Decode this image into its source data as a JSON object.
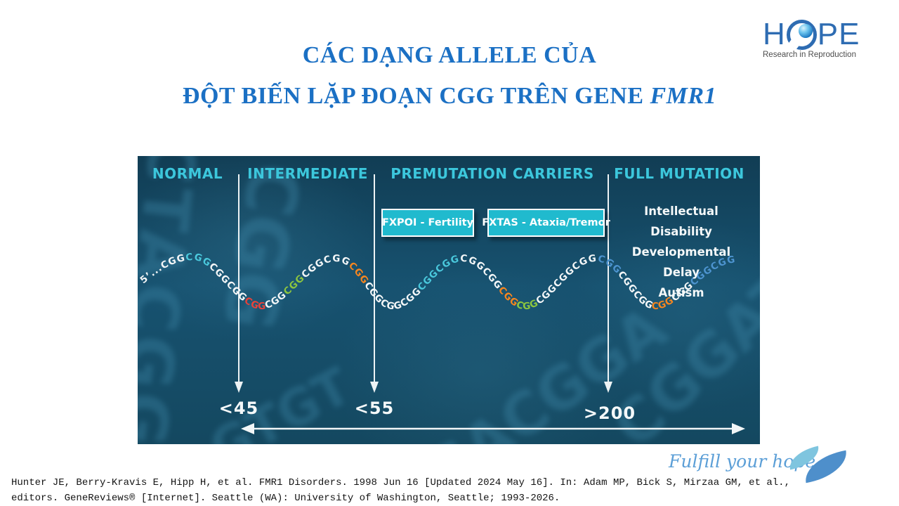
{
  "logo": {
    "part1": "H",
    "part2": "PE",
    "eye_icon": "hope-eye-icon",
    "tagline": "Research in Reproduction"
  },
  "header": {
    "title_line1": "CÁC DẠNG ALLELE CỦA",
    "title_line2_prefix": "ĐỘT BIẾN LẶP ĐOẠN CGG TRÊN GENE ",
    "title_line2_gene": "FMR1",
    "title_color": "#1B70C4"
  },
  "diagram": {
    "categories": [
      "NORMAL",
      "INTERMEDIATE",
      "PREMUTATION CARRIERS",
      "FULL MUTATION"
    ],
    "boundaries": [
      "<45",
      "<55",
      ">200"
    ],
    "boxes": [
      "FXPOI - Fertility",
      "FXTAS - Ataxia/Tremor"
    ],
    "full_mutation_effects": [
      "Intellectual Disability",
      "Developmental Delay",
      "Autism"
    ],
    "sequence_ends": {
      "five_prime": "5’...",
      "three_prime": "..3’"
    },
    "sequence": [
      {
        "t": "5’...",
        "c": "white"
      },
      {
        "t": "CGG",
        "c": "white"
      },
      {
        "t": "CGG",
        "c": "cyan"
      },
      {
        "t": "CGG",
        "c": "white"
      },
      {
        "t": "CGG",
        "c": "white"
      },
      {
        "t": "CGG",
        "c": "red"
      },
      {
        "t": "CGG",
        "c": "white"
      },
      {
        "t": "CGG",
        "c": "green"
      },
      {
        "t": "CGG",
        "c": "white"
      },
      {
        "t": "CGG",
        "c": "white"
      },
      {
        "t": "CGG",
        "c": "orange"
      },
      {
        "t": "CGG",
        "c": "white"
      },
      {
        "t": "CGG",
        "c": "white"
      },
      {
        "t": "CGG",
        "c": "white"
      },
      {
        "t": "CGG",
        "c": "cyan"
      },
      {
        "t": "CGG",
        "c": "cyan"
      },
      {
        "t": "CGG",
        "c": "white"
      },
      {
        "t": "CGG",
        "c": "white"
      },
      {
        "t": "CGG",
        "c": "orange"
      },
      {
        "t": "CGG",
        "c": "green"
      },
      {
        "t": "CGG",
        "c": "white"
      },
      {
        "t": "CGG",
        "c": "white"
      },
      {
        "t": "CGG",
        "c": "white"
      },
      {
        "t": "CGG",
        "c": "blue"
      },
      {
        "t": "CGG",
        "c": "white"
      },
      {
        "t": "CGG",
        "c": "white"
      },
      {
        "t": "CGG",
        "c": "orange"
      },
      {
        "t": "CGG",
        "c": "white"
      },
      {
        "t": "CGG",
        "c": "blue"
      },
      {
        "t": "CGG",
        "c": "blue"
      },
      {
        "t": "CGG..3’",
        "c": "white"
      }
    ],
    "sequence_colors": {
      "white": "#F4F7F8",
      "cyan": "#4AC8DC",
      "red": "#E8423A",
      "green": "#8DC63F",
      "orange": "#F6861F",
      "blue": "#4D94D0"
    },
    "background_letters": [
      "CTACGG",
      "CGG",
      "GTGT",
      "GACGGA",
      "CGGAT"
    ],
    "panel_color": "#164F69",
    "header_color": "#3CC7DC",
    "box_color": "#20BACE"
  },
  "footer": {
    "slogan": "Fulfill your hope",
    "citation_line1": "Hunter JE, Berry-Kravis E, Hipp H, et al. FMR1 Disorders. 1998 Jun 16 [Updated 2024 May 16]. In: Adam MP, Bick S, Mirzaa GM, et al.,",
    "citation_line2": "editors. GeneReviews® [Internet]. Seattle (WA): University of Washington, Seattle; 1993-2026."
  }
}
